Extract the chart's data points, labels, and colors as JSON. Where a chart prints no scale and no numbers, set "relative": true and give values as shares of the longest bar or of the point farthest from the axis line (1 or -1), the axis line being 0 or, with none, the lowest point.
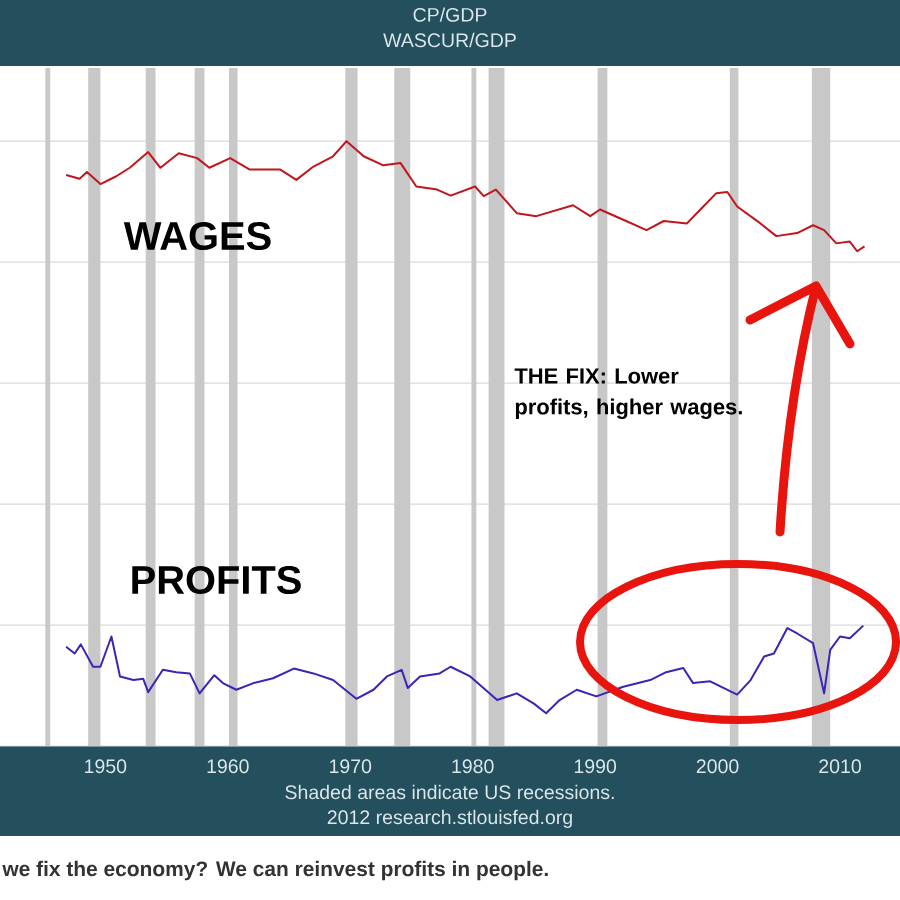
{
  "chart_data": {
    "type": "line",
    "title": "CP/GDP",
    "subtitle": "WASCUR/GDP",
    "relative": true,
    "grid": "y",
    "xlim": [
      1941.4,
      2014.9
    ],
    "xticks": [
      1950,
      1960,
      1970,
      1980,
      1990,
      2000,
      2010
    ],
    "series": [
      {
        "name": "WAGES",
        "color": "#c0161c",
        "x": [
          1946.8,
          1947.9,
          1948.5,
          1949.6,
          1950.9,
          1952.0,
          1953.5,
          1954.5,
          1956.0,
          1957.5,
          1958.5,
          1960.2,
          1961.8,
          1964.3,
          1965.6,
          1967.0,
          1968.6,
          1969.7,
          1971.1,
          1972.7,
          1974.1,
          1975.4,
          1977.1,
          1978.2,
          1980.2,
          1980.9,
          1981.9,
          1983.6,
          1985.2,
          1988.2,
          1989.6,
          1990.4,
          1992.3,
          1994.2,
          1995.6,
          1997.5,
          1998.6,
          1999.9,
          2000.8,
          2001.6,
          2003.5,
          2004.8,
          2006.5,
          2007.8,
          2008.7,
          2009.7,
          2010.8,
          2011.4,
          2012.0
        ],
        "values": [
          0.944,
          0.938,
          0.949,
          0.929,
          0.942,
          0.956,
          0.982,
          0.956,
          0.98,
          0.972,
          0.956,
          0.972,
          0.953,
          0.953,
          0.936,
          0.958,
          0.975,
          1.0,
          0.975,
          0.96,
          0.964,
          0.925,
          0.92,
          0.91,
          0.925,
          0.909,
          0.92,
          0.881,
          0.876,
          0.894,
          0.876,
          0.887,
          0.87,
          0.853,
          0.868,
          0.864,
          0.887,
          0.914,
          0.916,
          0.892,
          0.864,
          0.843,
          0.848,
          0.861,
          0.853,
          0.831,
          0.834,
          0.818,
          0.826
        ]
      },
      {
        "name": "PROFITS",
        "color": "#3b24b8",
        "x": [
          1946.8,
          1947.5,
          1948.0,
          1949.0,
          1949.6,
          1950.5,
          1951.2,
          1952.3,
          1953.1,
          1953.5,
          1954.7,
          1955.8,
          1956.9,
          1957.7,
          1958.9,
          1959.6,
          1960.7,
          1962.1,
          1963.7,
          1965.4,
          1967.0,
          1968.6,
          1970.5,
          1971.9,
          1973.0,
          1974.2,
          1974.7,
          1975.7,
          1977.3,
          1978.2,
          1979.8,
          1982.0,
          1983.6,
          1985.0,
          1986.0,
          1987.1,
          1988.5,
          1990.1,
          1992.3,
          1994.5,
          1995.8,
          1997.2,
          1998.0,
          1999.4,
          2001.6,
          2002.7,
          2003.8,
          2004.6,
          2005.7,
          2006.5,
          2007.8,
          2008.7,
          2009.2,
          2010.0,
          2010.8,
          2011.9
        ],
        "values": [
          0.164,
          0.153,
          0.168,
          0.131,
          0.131,
          0.181,
          0.115,
          0.109,
          0.111,
          0.089,
          0.126,
          0.122,
          0.12,
          0.087,
          0.117,
          0.104,
          0.093,
          0.104,
          0.112,
          0.128,
          0.12,
          0.109,
          0.078,
          0.093,
          0.115,
          0.126,
          0.096,
          0.115,
          0.12,
          0.131,
          0.115,
          0.076,
          0.087,
          0.07,
          0.054,
          0.076,
          0.093,
          0.082,
          0.098,
          0.109,
          0.122,
          0.129,
          0.104,
          0.107,
          0.085,
          0.109,
          0.148,
          0.153,
          0.195,
          0.186,
          0.17,
          0.087,
          0.159,
          0.181,
          0.178,
          0.199
        ]
      }
    ],
    "bands": [
      {
        "axis": "x",
        "from": 1945.1,
        "to": 1945.5,
        "color": "#c8c8c8"
      },
      {
        "axis": "x",
        "from": 1948.6,
        "to": 1949.6,
        "color": "#c8c8c8"
      },
      {
        "axis": "x",
        "from": 1953.3,
        "to": 1954.1,
        "color": "#c8c8c8"
      },
      {
        "axis": "x",
        "from": 1957.3,
        "to": 1958.1,
        "color": "#c8c8c8"
      },
      {
        "axis": "x",
        "from": 1960.1,
        "to": 1960.8,
        "color": "#c8c8c8"
      },
      {
        "axis": "x",
        "from": 1969.6,
        "to": 1970.6,
        "color": "#c8c8c8"
      },
      {
        "axis": "x",
        "from": 1973.6,
        "to": 1974.9,
        "color": "#c8c8c8"
      },
      {
        "axis": "x",
        "from": 1979.9,
        "to": 1980.3,
        "color": "#c8c8c8"
      },
      {
        "axis": "x",
        "from": 1981.3,
        "to": 1982.6,
        "color": "#c8c8c8"
      },
      {
        "axis": "x",
        "from": 1990.2,
        "to": 1991.0,
        "color": "#c8c8c8"
      },
      {
        "axis": "x",
        "from": 2001.0,
        "to": 2001.7,
        "color": "#c8c8c8"
      },
      {
        "axis": "x",
        "from": 2007.7,
        "to": 2009.2,
        "color": "#c8c8c8"
      }
    ],
    "annotations": [
      "THE FIX: Lower profits, higher wages.",
      "Shaded areas indicate US recessions.",
      "2012 research.stlouisfed.org",
      "we fix the economy? We can reinvest profits in people."
    ]
  }
}
